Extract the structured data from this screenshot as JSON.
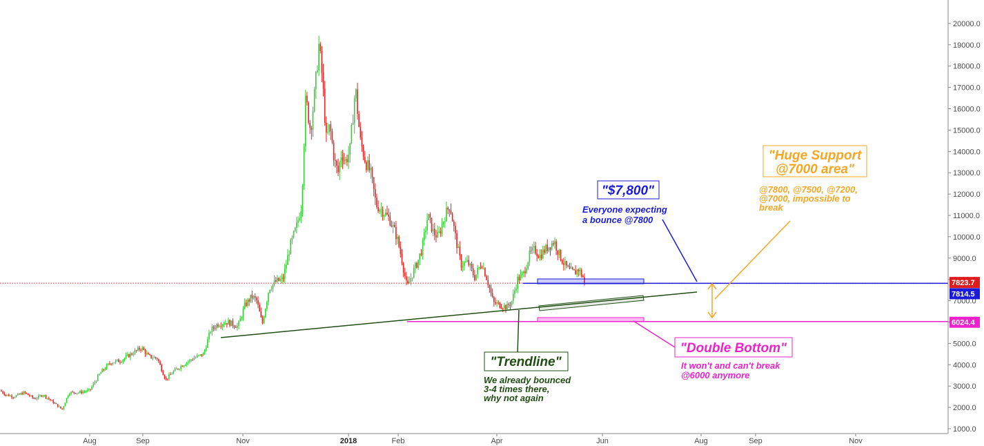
{
  "chart_data": {
    "type": "candlestick",
    "ylim": [
      900,
      20500
    ],
    "y_ticks": [
      "20000.0",
      "19000.0",
      "18000.0",
      "17000.0",
      "16000.0",
      "15000.0",
      "14000.0",
      "13000.0",
      "12000.0",
      "11000.0",
      "10000.0",
      "9000.0",
      "8000.0",
      "7000.0",
      "6000.0",
      "5000.0",
      "4000.0",
      "3000.0",
      "2000.0",
      "1000.0"
    ],
    "x_ticks": [
      {
        "label": "Aug",
        "bold": false
      },
      {
        "label": "Sep",
        "bold": false
      },
      {
        "label": "Nov",
        "bold": false
      },
      {
        "label": "2018",
        "bold": true
      },
      {
        "label": "Feb",
        "bold": false
      },
      {
        "label": "Apr",
        "bold": false
      },
      {
        "label": "Jun",
        "bold": false
      },
      {
        "label": "Aug",
        "bold": false
      },
      {
        "label": "Sep",
        "bold": false
      },
      {
        "label": "Nov",
        "bold": false
      }
    ],
    "up_color": "#33cc33",
    "down_color": "#e82020",
    "price_anchors": [
      [
        0,
        2800
      ],
      [
        8,
        2600
      ],
      [
        20,
        2500
      ],
      [
        35,
        2700
      ],
      [
        50,
        2400
      ],
      [
        62,
        2600
      ],
      [
        75,
        2300
      ],
      [
        90,
        1900
      ],
      [
        100,
        2700
      ],
      [
        115,
        2700
      ],
      [
        130,
        2800
      ],
      [
        145,
        3600
      ],
      [
        160,
        4100
      ],
      [
        175,
        4200
      ],
      [
        190,
        4500
      ],
      [
        205,
        4800
      ],
      [
        215,
        4400
      ],
      [
        228,
        4300
      ],
      [
        240,
        3300
      ],
      [
        252,
        3700
      ],
      [
        265,
        4000
      ],
      [
        280,
        4300
      ],
      [
        295,
        4500
      ],
      [
        305,
        5600
      ],
      [
        315,
        5900
      ],
      [
        330,
        6000
      ],
      [
        345,
        5800
      ],
      [
        355,
        6800
      ],
      [
        365,
        7200
      ],
      [
        372,
        7000
      ],
      [
        380,
        5900
      ],
      [
        390,
        7600
      ],
      [
        400,
        7900
      ],
      [
        410,
        8000
      ],
      [
        420,
        9500
      ],
      [
        430,
        10500
      ],
      [
        437,
        11500
      ],
      [
        443,
        16500
      ],
      [
        450,
        15000
      ],
      [
        457,
        17000
      ],
      [
        462,
        19000
      ],
      [
        467,
        17500
      ],
      [
        473,
        14500
      ],
      [
        478,
        15200
      ],
      [
        485,
        13500
      ],
      [
        490,
        13000
      ],
      [
        495,
        14000
      ],
      [
        500,
        13500
      ],
      [
        507,
        14000
      ],
      [
        515,
        17000
      ],
      [
        522,
        14500
      ],
      [
        530,
        13500
      ],
      [
        537,
        13000
      ],
      [
        545,
        11500
      ],
      [
        555,
        11200
      ],
      [
        565,
        10800
      ],
      [
        575,
        10000
      ],
      [
        582,
        9000
      ],
      [
        590,
        7600
      ],
      [
        598,
        8300
      ],
      [
        605,
        8800
      ],
      [
        612,
        9500
      ],
      [
        620,
        11000
      ],
      [
        628,
        10200
      ],
      [
        635,
        10000
      ],
      [
        645,
        11000
      ],
      [
        652,
        11500
      ],
      [
        660,
        10000
      ],
      [
        668,
        8700
      ],
      [
        678,
        8800
      ],
      [
        688,
        8100
      ],
      [
        698,
        8800
      ],
      [
        706,
        8000
      ],
      [
        715,
        6900
      ],
      [
        725,
        6800
      ],
      [
        735,
        6700
      ],
      [
        742,
        7000
      ],
      [
        750,
        8000
      ],
      [
        758,
        8200
      ],
      [
        768,
        9200
      ],
      [
        775,
        9400
      ],
      [
        782,
        9100
      ],
      [
        790,
        9400
      ],
      [
        797,
        9600
      ],
      [
        803,
        9800
      ],
      [
        810,
        9200
      ],
      [
        818,
        8700
      ],
      [
        825,
        8400
      ],
      [
        833,
        8300
      ],
      [
        838,
        8500
      ],
      [
        845,
        8100
      ],
      [
        849,
        7823.7
      ]
    ],
    "annotations": [
      {
        "id": "price7800",
        "title": "\"$7,800\"",
        "lines": [
          "Everyone expecting",
          "a bounce @7800"
        ],
        "color": "#1a1adb"
      },
      {
        "id": "support",
        "title_lines": [
          "\"Huge Support",
          "@7000 area\""
        ],
        "lines": [
          "@7800, @7500, @7200,",
          "@7000, impossible to",
          "break"
        ],
        "color": "#f5a623"
      },
      {
        "id": "trendline",
        "title": "\"Trendline\"",
        "lines": [
          "We already bounced",
          "3-4 times there,",
          "why not again"
        ],
        "color": "#1f4d12"
      },
      {
        "id": "doublebottom",
        "title": "\"Double Bottom\"",
        "lines": [
          "It won't and can't break",
          "@6000 anymore"
        ],
        "color": "#ee22cc"
      }
    ],
    "price_labels": [
      {
        "value": "7823.7",
        "color": "#e01b1b"
      },
      {
        "value": "7814.5",
        "color": "#1a1adb"
      },
      {
        "value": "6024.4",
        "color": "#ee22cc"
      }
    ]
  }
}
